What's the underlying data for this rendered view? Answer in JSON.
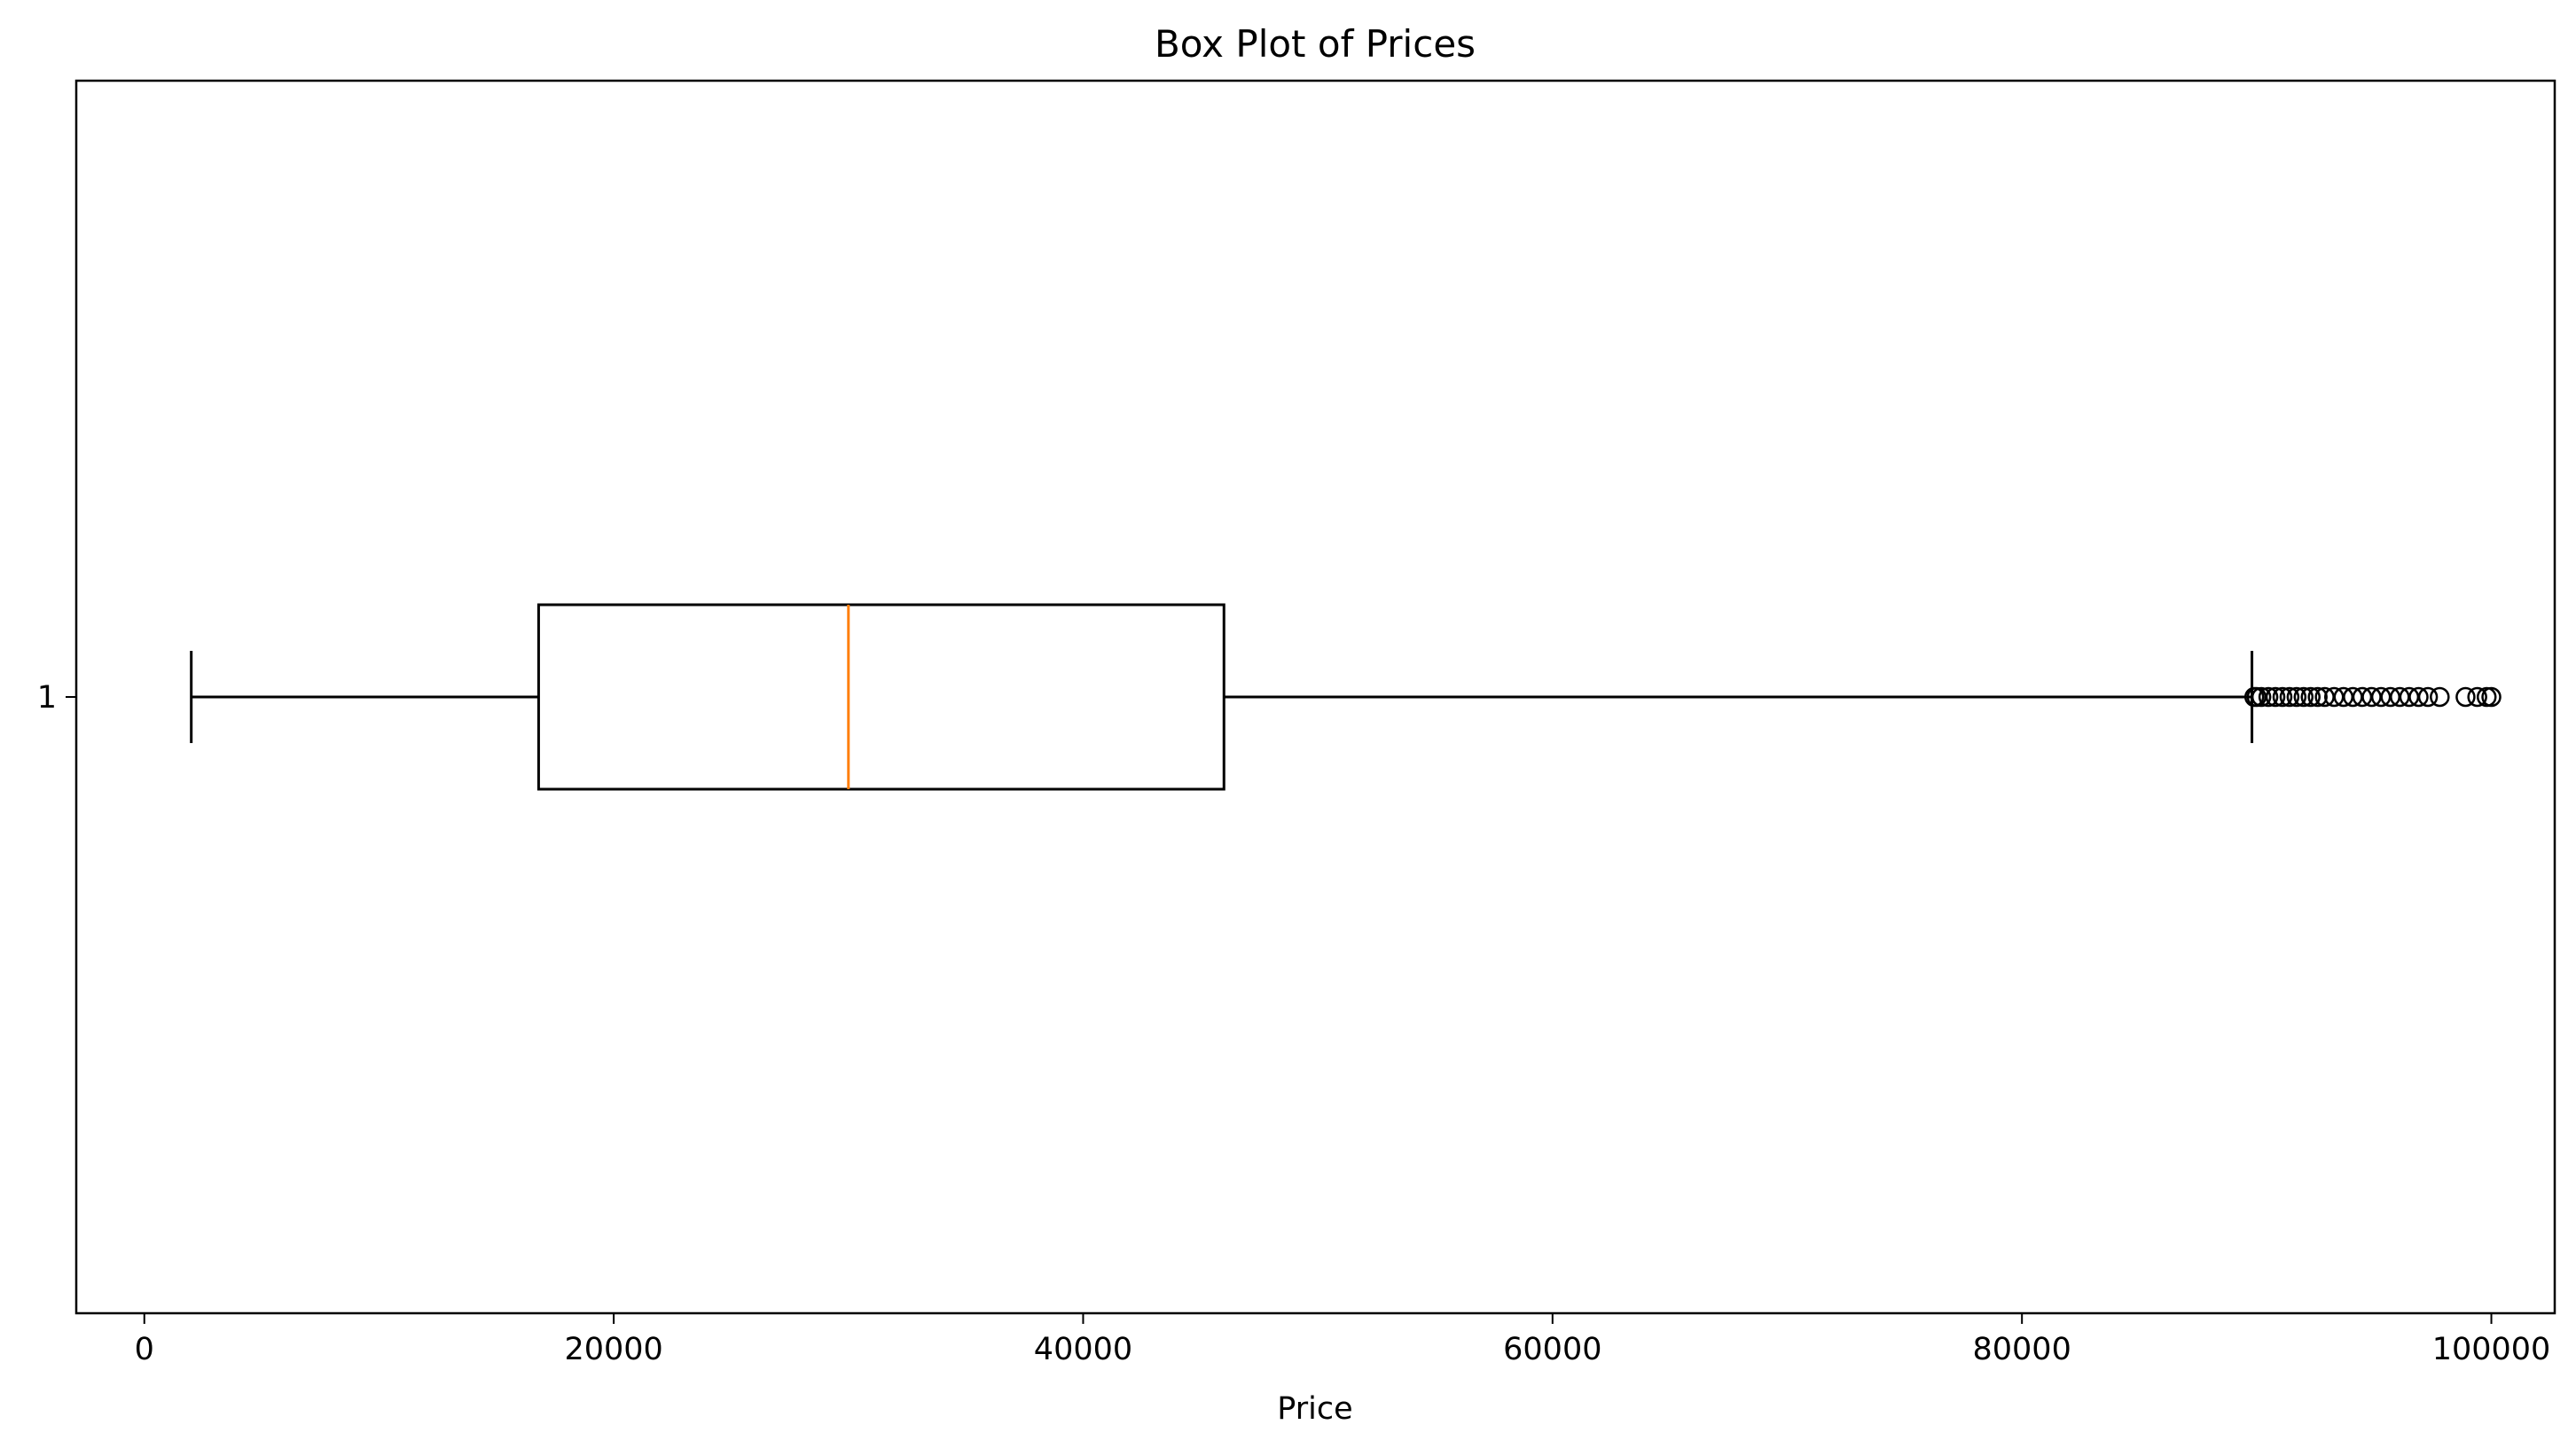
{
  "chart_data": {
    "type": "box",
    "orientation": "horizontal",
    "title": "Box Plot of Prices",
    "xlabel": "Price",
    "ylabel": "",
    "xlim": [
      -2900,
      102700
    ],
    "x_ticks": [
      0,
      20000,
      40000,
      60000,
      80000,
      100000
    ],
    "x_tick_labels": [
      "0",
      "20000",
      "40000",
      "60000",
      "80000",
      "100000"
    ],
    "y_tick_labels": [
      "1"
    ],
    "grid": false,
    "legend": null,
    "box": {
      "category": "1",
      "whisker_low": 2000,
      "q1": 16800,
      "median": 30000,
      "q3": 46000,
      "whisker_high": 89800,
      "outliers": [
        89900,
        90000,
        90200,
        90500,
        90800,
        91100,
        91400,
        91700,
        92000,
        92300,
        92600,
        92900,
        93300,
        93700,
        94100,
        94500,
        94900,
        95300,
        95700,
        96100,
        96500,
        96900,
        97300,
        97800,
        98900,
        99400,
        99800,
        100000
      ]
    },
    "colors": {
      "box_edge": "#000000",
      "median": "#ff7f0e",
      "whisker": "#000000",
      "outlier_edge": "#000000"
    }
  }
}
